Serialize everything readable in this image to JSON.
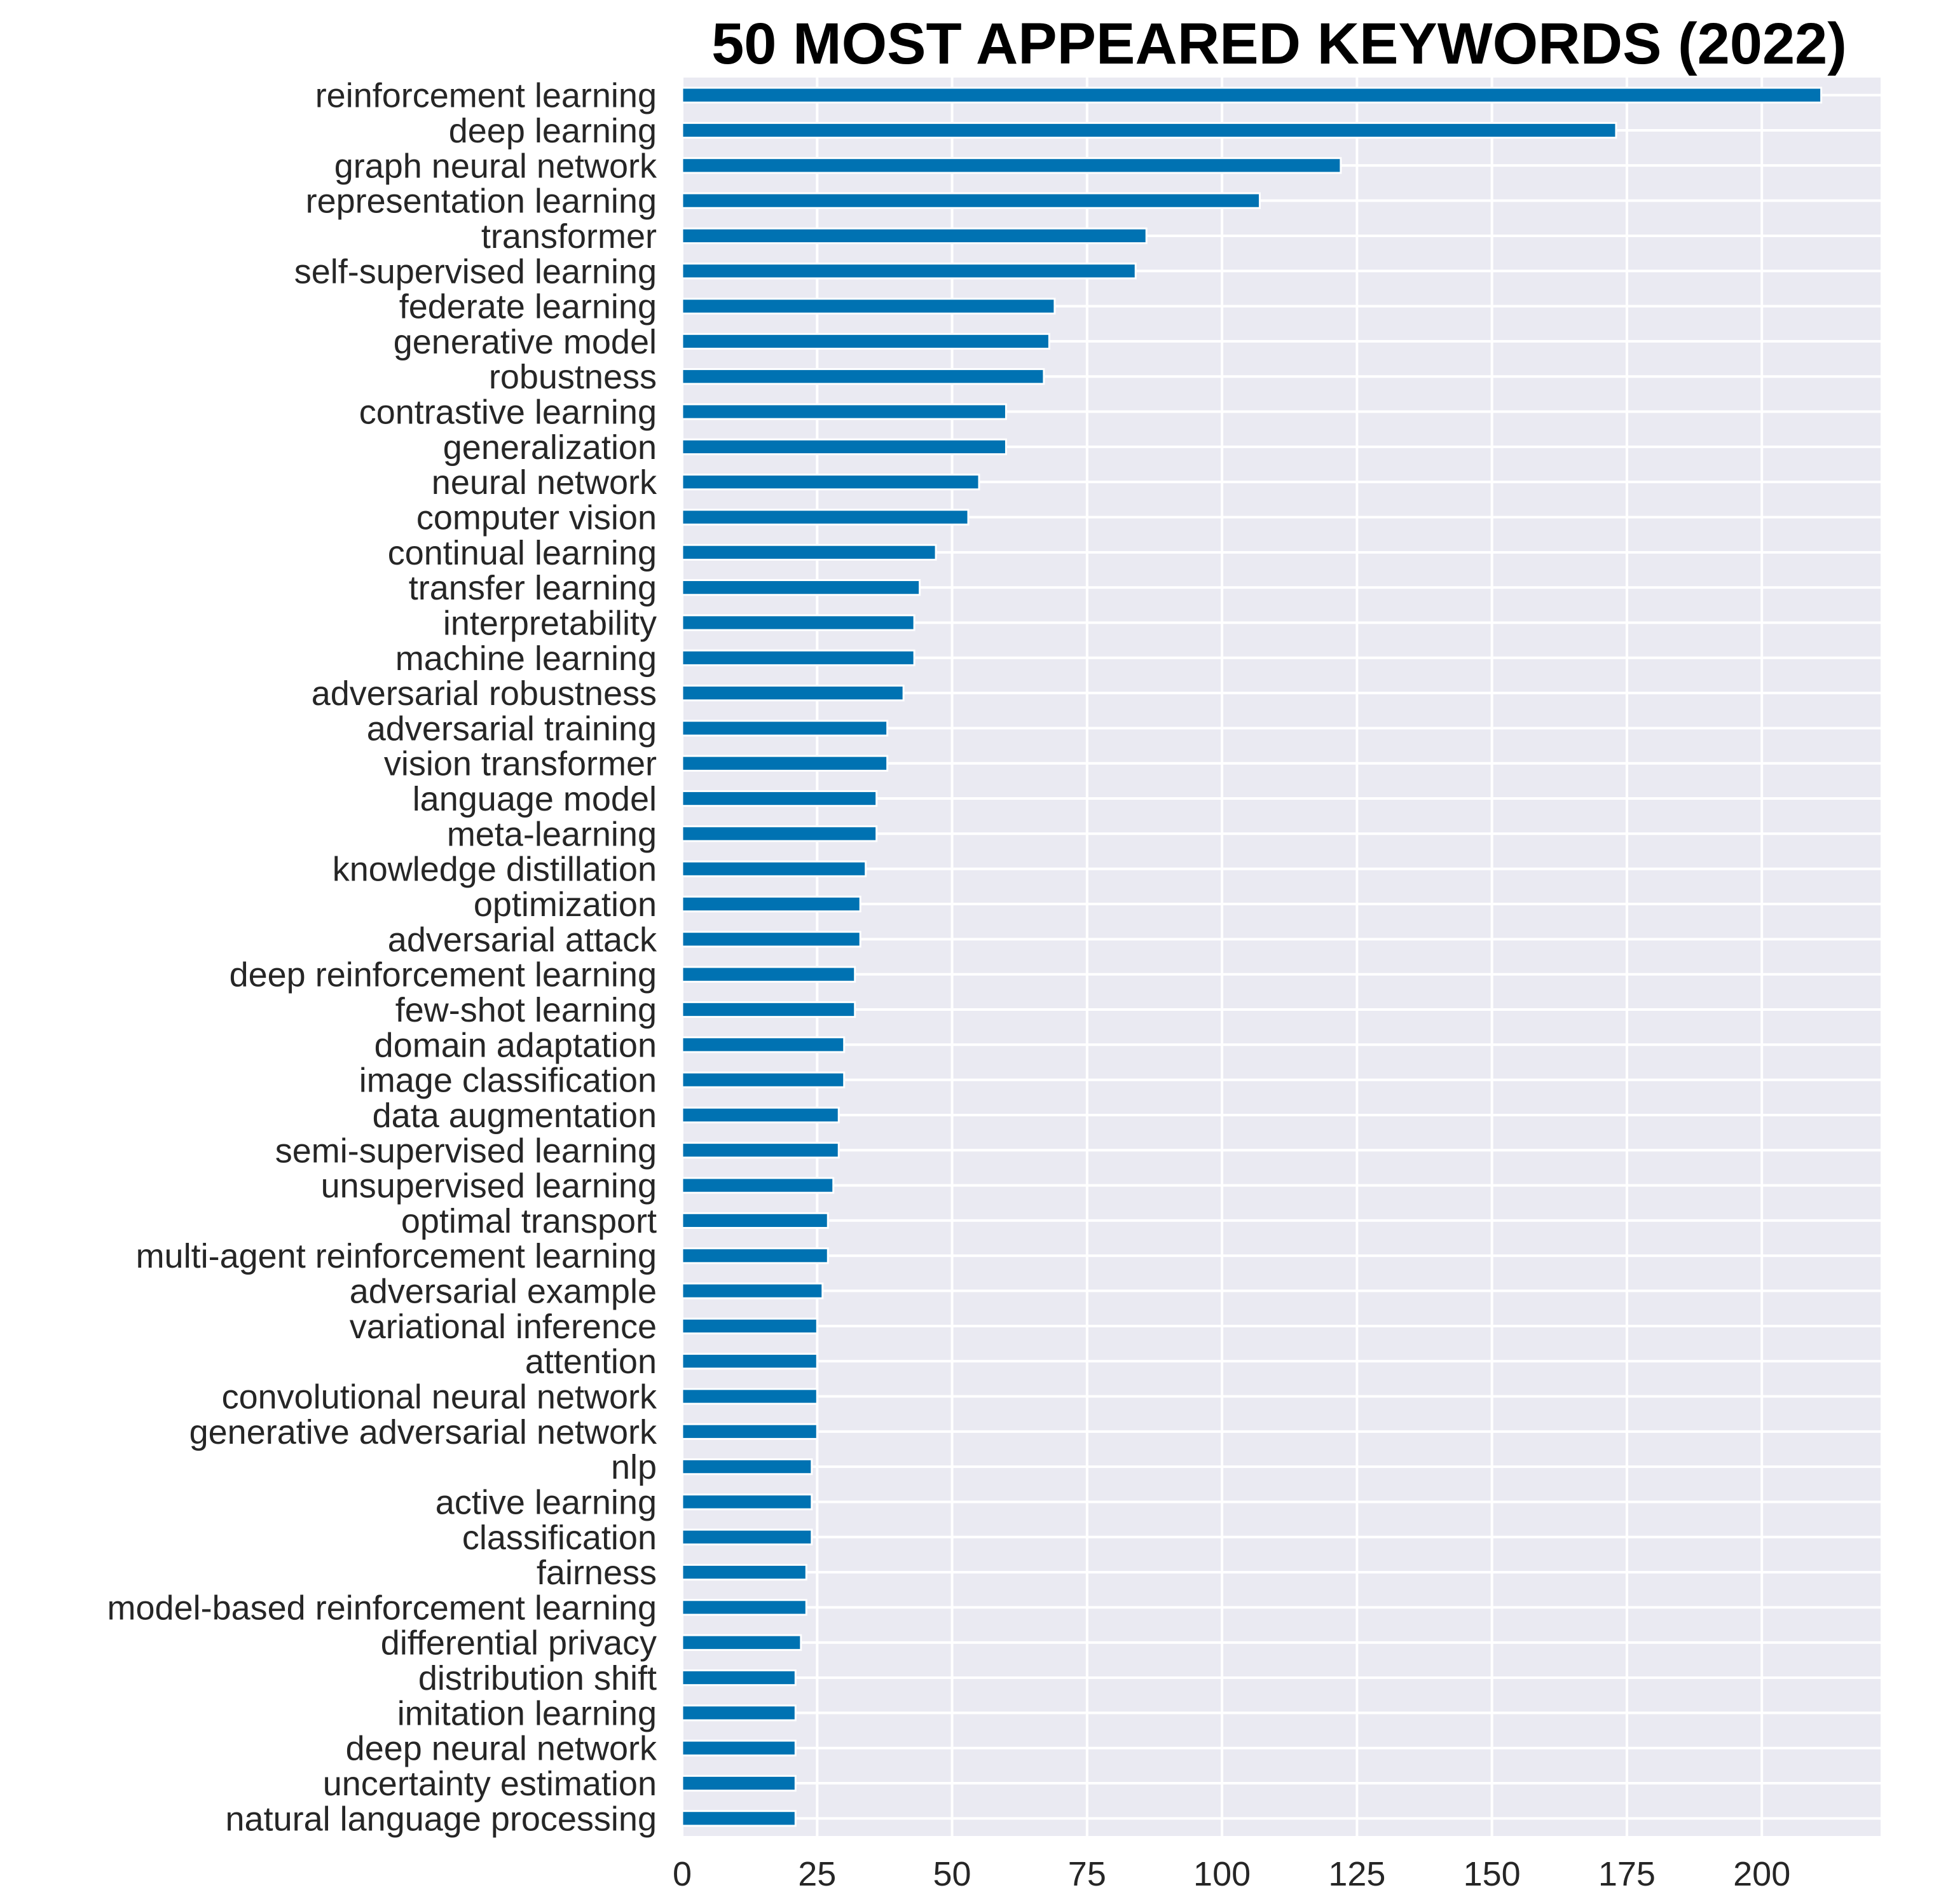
{
  "chart_data": {
    "type": "bar",
    "orientation": "horizontal",
    "title": "50 MOST APPEARED KEYWORDS (2022)",
    "xlabel": "",
    "ylabel": "",
    "xlim": [
      0,
      222
    ],
    "xticks": [
      0,
      25,
      50,
      75,
      100,
      125,
      150,
      175,
      200
    ],
    "grid": true,
    "legend": "none",
    "colors": {
      "bar": "#0072B2",
      "plot_background": "#EAEAF2",
      "grid": "#FFFFFF",
      "text": "#262626",
      "title": "#000000"
    },
    "categories": [
      "reinforcement learning",
      "deep learning",
      "graph neural network",
      "representation learning",
      "transformer",
      "self-supervised learning",
      "federate learning",
      "generative model",
      "robustness",
      "contrastive learning",
      "generalization",
      "neural network",
      "computer vision",
      "continual learning",
      "transfer learning",
      "interpretability",
      "machine learning",
      "adversarial robustness",
      "adversarial training",
      "vision transformer",
      "language model",
      "meta-learning",
      "knowledge distillation",
      "optimization",
      "adversarial attack",
      "deep reinforcement learning",
      "few-shot learning",
      "domain adaptation",
      "image classification",
      "data augmentation",
      "semi-supervised learning",
      "unsupervised learning",
      "optimal transport",
      "multi-agent reinforcement learning",
      "adversarial example",
      "variational inference",
      "attention",
      "convolutional neural network",
      "generative adversarial network",
      "nlp",
      "active learning",
      "classification",
      "fairness",
      "model-based reinforcement learning",
      "differential privacy",
      "distribution shift",
      "imitation learning",
      "deep neural network",
      "uncertainty estimation",
      "natural language processing"
    ],
    "values": [
      211,
      173,
      122,
      107,
      86,
      84,
      69,
      68,
      67,
      60,
      60,
      55,
      53,
      47,
      44,
      43,
      43,
      41,
      38,
      38,
      36,
      36,
      34,
      33,
      33,
      32,
      32,
      30,
      30,
      29,
      29,
      28,
      27,
      27,
      26,
      25,
      25,
      25,
      25,
      24,
      24,
      24,
      23,
      23,
      22,
      21,
      21,
      21,
      21,
      21
    ]
  }
}
